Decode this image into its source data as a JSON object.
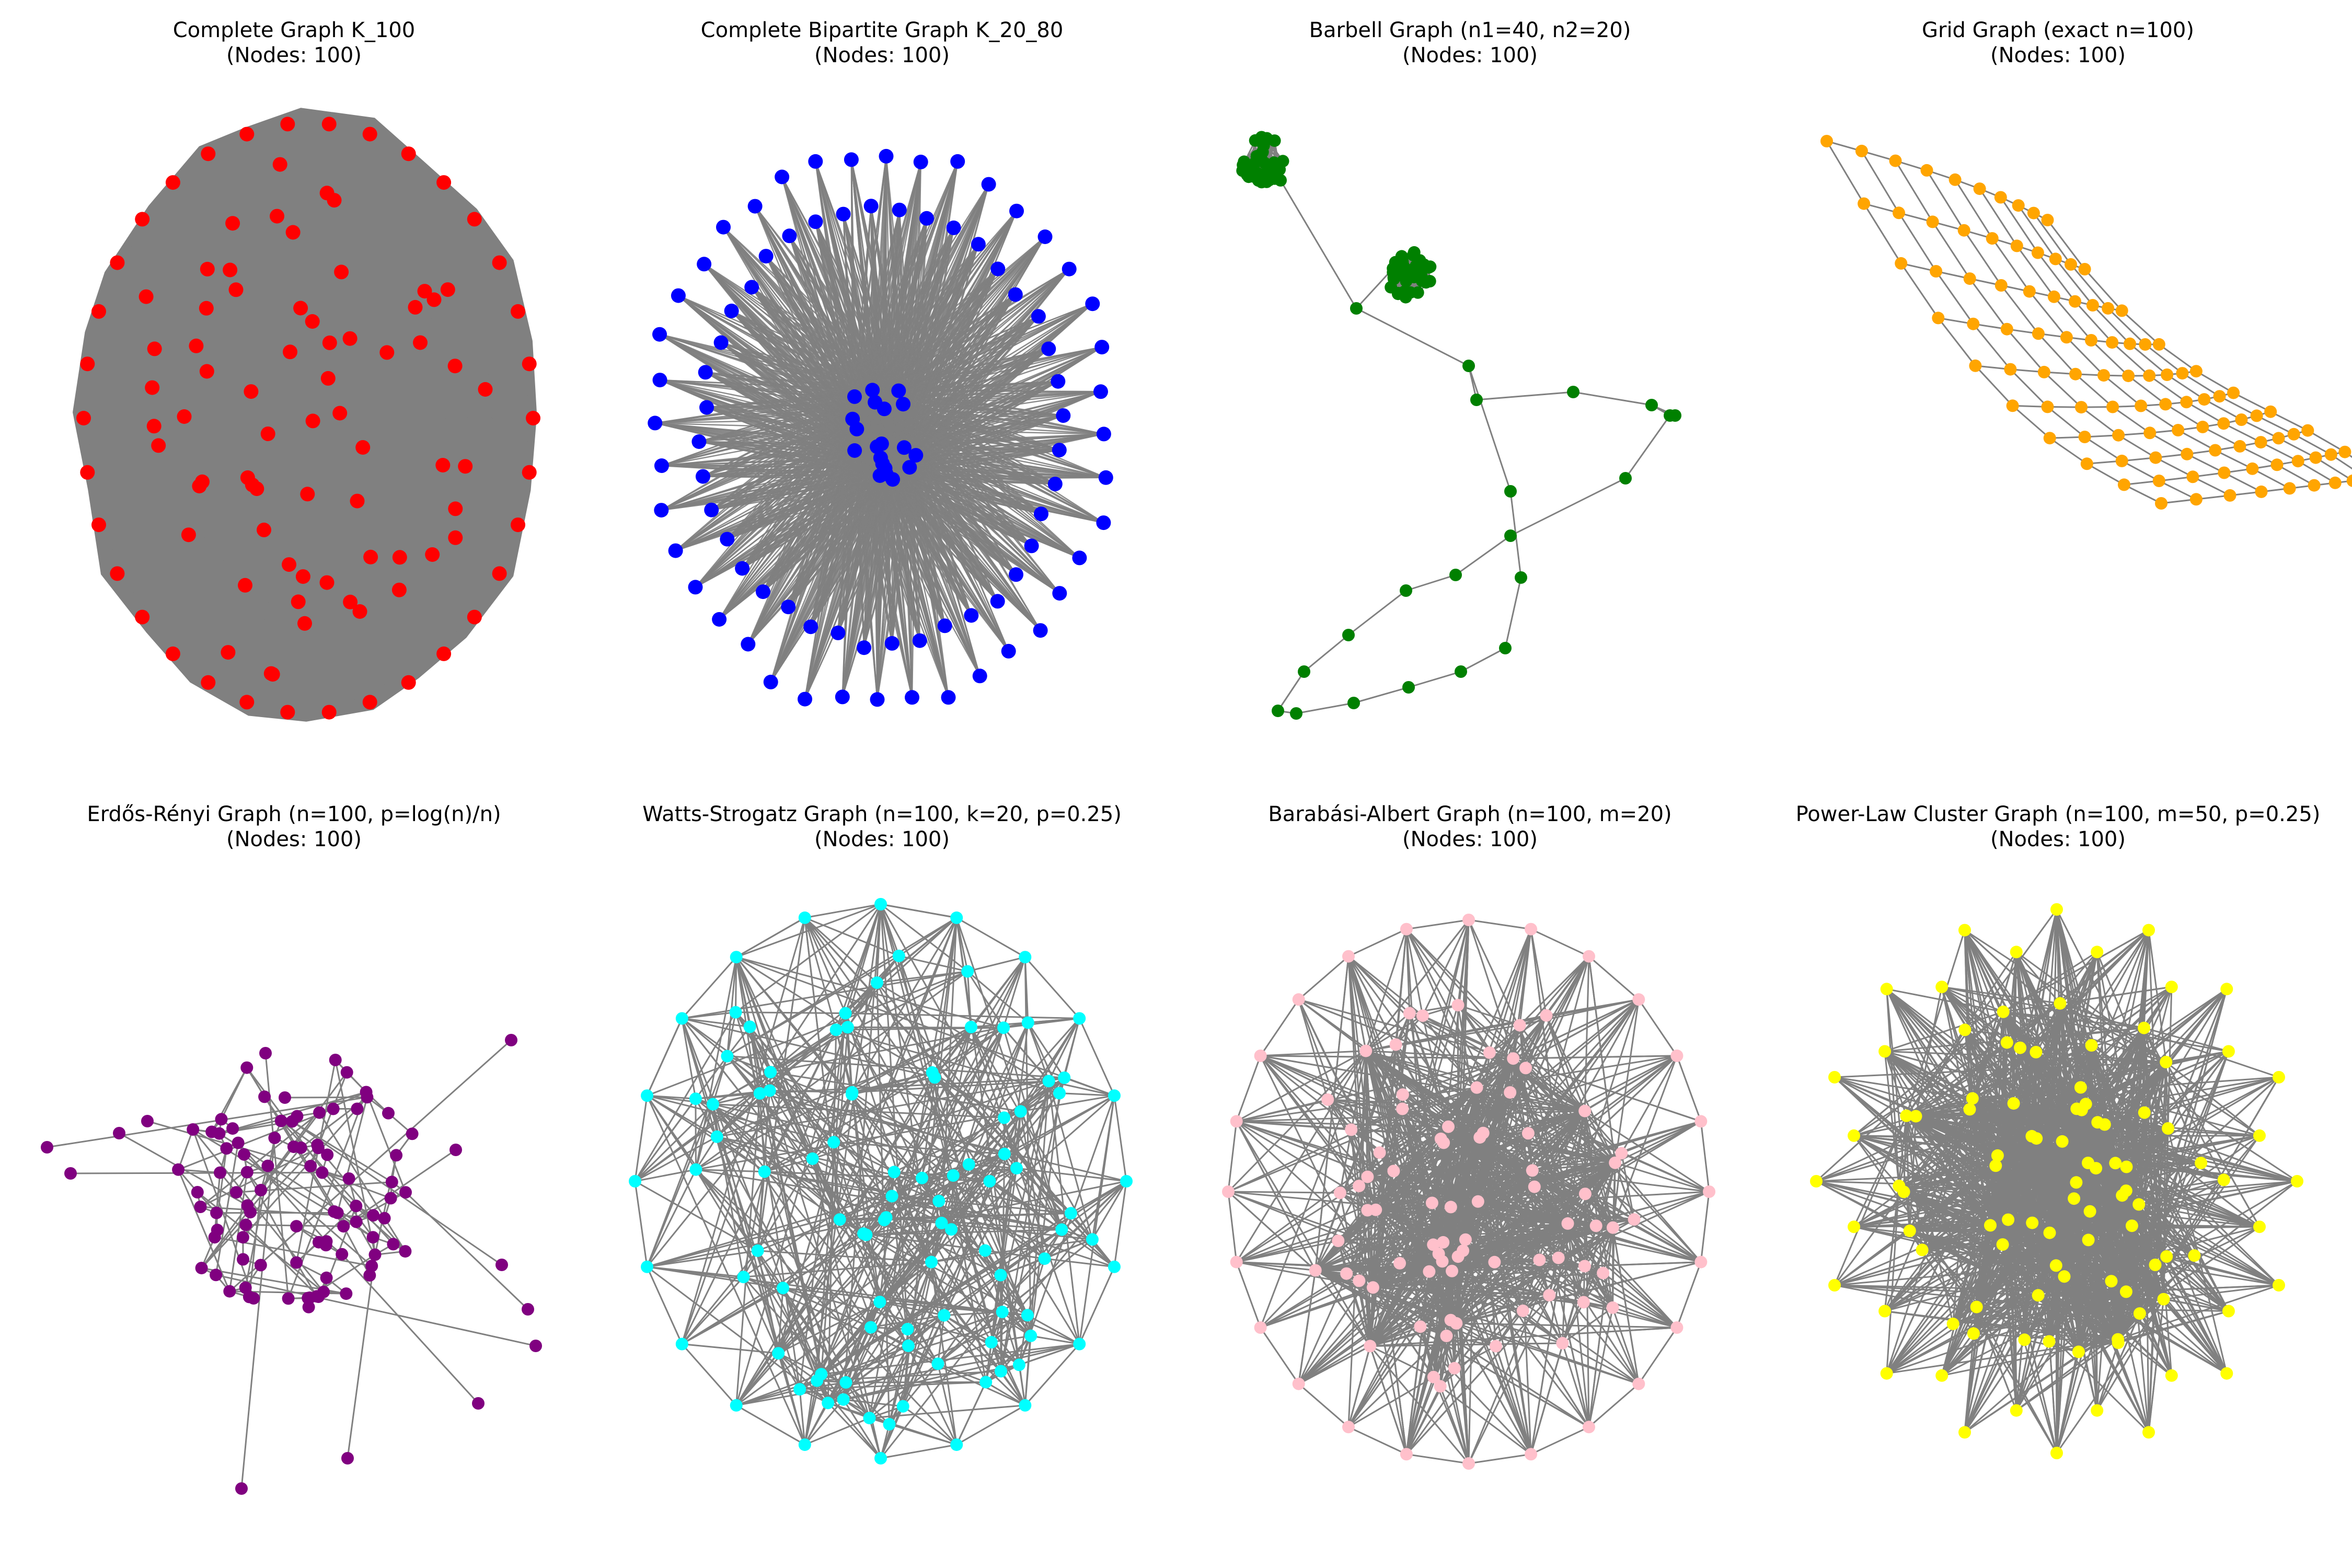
{
  "figure": {
    "edge_color": "#808080",
    "panels": [
      {
        "id": "complete",
        "title": "Complete Graph K_100",
        "subtitle": "(Nodes: 100)",
        "nodes": 100,
        "node_color": "#ff0000",
        "layout": "filled-blob",
        "edge_density": "complete"
      },
      {
        "id": "bipartite",
        "title": "Complete Bipartite Graph K_20_80",
        "subtitle": "(Nodes: 100)",
        "nodes": 100,
        "node_color": "#0000ff",
        "layout": "center-cluster-with-outer-ring",
        "inner_nodes": 20,
        "outer_nodes": 80
      },
      {
        "id": "barbell",
        "title": "Barbell Graph (n1=40, n2=20)",
        "subtitle": "(Nodes: 100)",
        "nodes": 100,
        "node_color": "#008000",
        "layout": "two-clusters-with-path",
        "clique_size": 40,
        "path_length": 20
      },
      {
        "id": "grid",
        "title": "Grid Graph (exact n=100)",
        "subtitle": "(Nodes: 100)",
        "nodes": 100,
        "node_color": "#ffa500",
        "layout": "lattice",
        "rows": 10,
        "cols": 10
      },
      {
        "id": "erdos",
        "title": "Erdős-Rényi Graph (n=100, p=log(n)/n)",
        "subtitle": "(Nodes: 100)",
        "nodes": 100,
        "node_color": "#800080",
        "layout": "sparse-random"
      },
      {
        "id": "watts",
        "title": "Watts-Strogatz Graph (n=100, k=20, p=0.25)",
        "subtitle": "(Nodes: 100)",
        "nodes": 100,
        "node_color": "#00ffff",
        "layout": "dense-random"
      },
      {
        "id": "barabasi",
        "title": "Barabási-Albert Graph (n=100, m=20)",
        "subtitle": "(Nodes: 100)",
        "nodes": 100,
        "node_color": "#ffc0cb",
        "layout": "dense-random"
      },
      {
        "id": "powerlaw",
        "title": "Power-Law Cluster Graph (n=100, m=50, p=0.25)",
        "subtitle": "(Nodes: 100)",
        "nodes": 100,
        "node_color": "#ffff00",
        "layout": "dense-star"
      }
    ]
  }
}
